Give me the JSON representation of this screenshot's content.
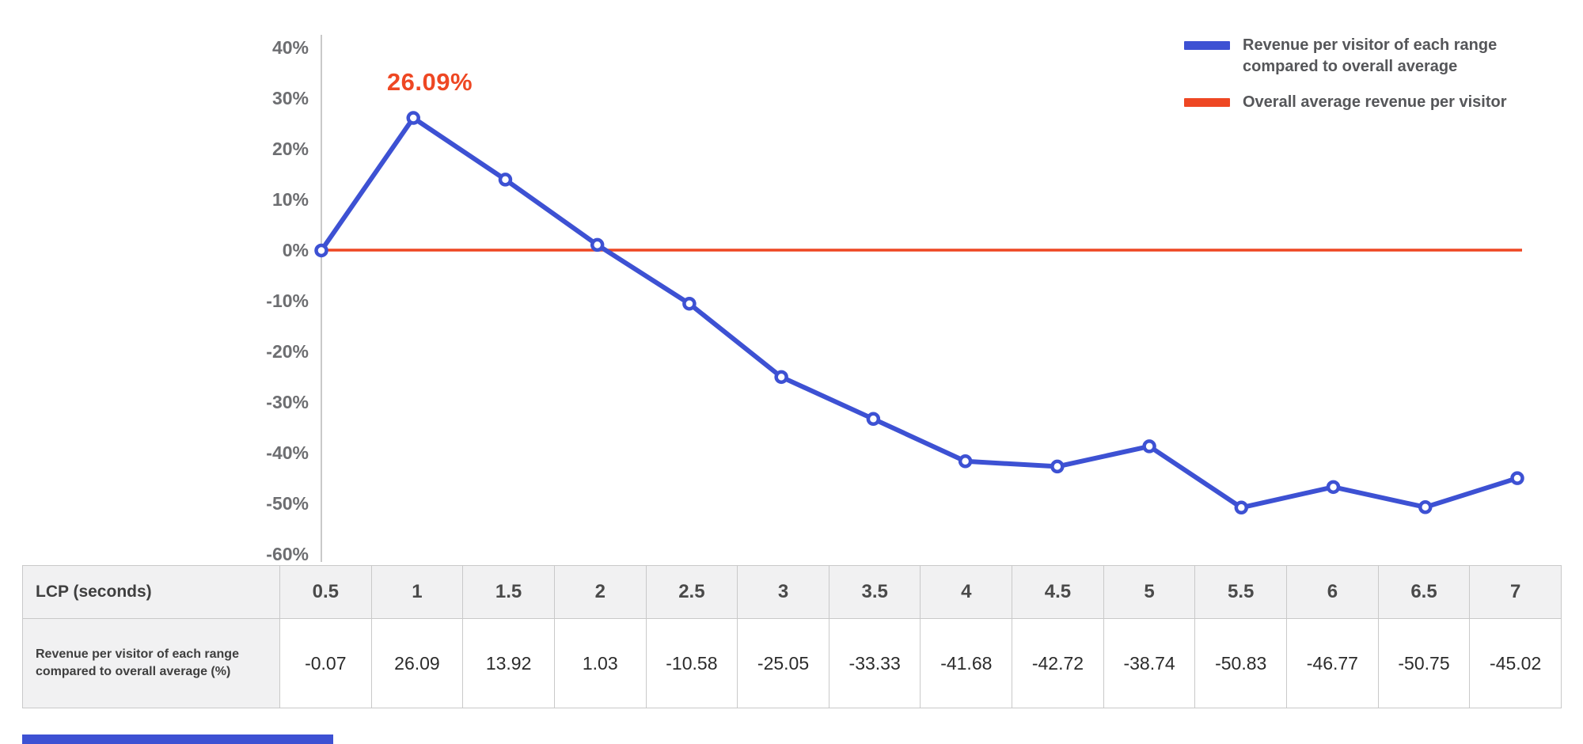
{
  "chart_data": {
    "type": "line",
    "title": "",
    "x_label": "LCP (seconds)",
    "x": [
      "0.5",
      "1",
      "1.5",
      "2",
      "2.5",
      "3",
      "3.5",
      "4",
      "4.5",
      "5",
      "5.5",
      "6",
      "6.5",
      "7"
    ],
    "series": [
      {
        "name": "Revenue per visitor of each range compared to overall average",
        "values": [
          -0.07,
          26.09,
          13.92,
          1.03,
          -10.58,
          -25.05,
          -33.33,
          -41.68,
          -42.72,
          -38.74,
          -50.83,
          -46.77,
          -50.75,
          -45.02
        ],
        "color": "#3d51d3",
        "marker": "open-circle"
      },
      {
        "name": "Overall average revenue per visitor",
        "type": "constant",
        "value": 0,
        "color": "#ee4723"
      }
    ],
    "ylim": [
      -60,
      40
    ],
    "y_ticks": [
      "40%",
      "30%",
      "20%",
      "10%",
      "0%",
      "-10%",
      "-20%",
      "-30%",
      "-40%",
      "-50%",
      "-60%"
    ],
    "y_tick_step": 10,
    "grid": false,
    "legend_position": "top-right",
    "annotation": {
      "text": "26.09%",
      "point_index": 1,
      "color": "#ee4723"
    }
  },
  "table": {
    "header_row": {
      "label": "LCP (seconds)",
      "values": [
        "0.5",
        "1",
        "1.5",
        "2",
        "2.5",
        "3",
        "3.5",
        "4",
        "4.5",
        "5",
        "5.5",
        "6",
        "6.5",
        "7"
      ]
    },
    "data_row": {
      "label": "Revenue per visitor of each range compared to overall average (%)",
      "values": [
        "-0.07",
        "26.09",
        "13.92",
        "1.03",
        "-10.58",
        "-25.05",
        "-33.33",
        "-41.68",
        "-42.72",
        "-38.74",
        "-50.83",
        "-46.77",
        "-50.75",
        "-45.02"
      ]
    }
  },
  "colors": {
    "accent_blue": "#3d51d3",
    "accent_red": "#ee4723",
    "axis_text": "#6d6e71",
    "axis_line": "#c9c9c9",
    "table_border": "#c9c9c9",
    "table_header_bg": "#f1f1f2"
  }
}
